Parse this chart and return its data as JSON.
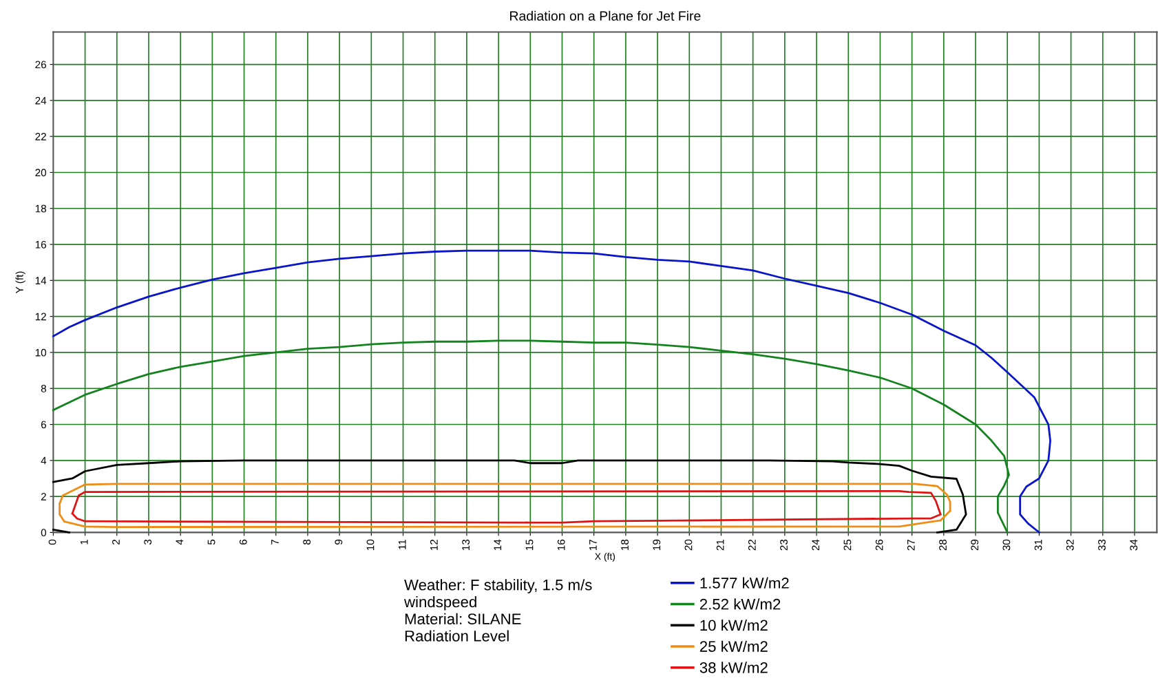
{
  "chart_data": {
    "type": "line",
    "title": "Radiation on a Plane for Jet Fire",
    "xlabel": "X (ft)",
    "ylabel": "Y (ft)",
    "xlim": [
      0,
      34.7
    ],
    "ylim": [
      0,
      27.8
    ],
    "xticks": [
      0,
      1,
      2,
      3,
      4,
      5,
      6,
      7,
      8,
      9,
      10,
      11,
      12,
      13,
      14,
      15,
      16,
      17,
      18,
      19,
      20,
      21,
      22,
      23,
      24,
      25,
      26,
      27,
      28,
      29,
      30,
      31,
      32,
      33,
      34
    ],
    "yticks": [
      0,
      2,
      4,
      6,
      8,
      10,
      12,
      14,
      16,
      18,
      20,
      22,
      24,
      26
    ],
    "grid": true,
    "legend": "bottom",
    "marker": "none",
    "line_style": "solid",
    "annotations": [
      "Weather: F stability, 1.5 m/s\nwindspeed\nMaterial: SILANE\nRadiation Level"
    ],
    "series": [
      {
        "name": "1.577 kW/m2",
        "color": "#0a14c8",
        "x": [
          0,
          0.5,
          1,
          2,
          3,
          4,
          5,
          6,
          7,
          8,
          9,
          10,
          11,
          12,
          13,
          14,
          15,
          16,
          17,
          18,
          19,
          20,
          21,
          22,
          23,
          24,
          25,
          26,
          27,
          28,
          29,
          29.5,
          30,
          30.85,
          31.29,
          31.35,
          31.29,
          31,
          30.6,
          30.4,
          30.4,
          30.65,
          31
        ],
        "values": [
          10.9,
          11.4,
          11.8,
          12.5,
          13.1,
          13.6,
          14.05,
          14.4,
          14.7,
          15.0,
          15.2,
          15.35,
          15.5,
          15.6,
          15.65,
          15.65,
          15.65,
          15.55,
          15.5,
          15.3,
          15.15,
          15.05,
          14.8,
          14.55,
          14.1,
          13.7,
          13.3,
          12.75,
          12.1,
          11.2,
          10.4,
          9.7,
          8.9,
          7.5,
          6.0,
          5.1,
          4.0,
          3.0,
          2.55,
          2.0,
          1.0,
          0.5,
          0
        ]
      },
      {
        "name": "2.52 kW/m2",
        "color": "#14821e",
        "x": [
          0,
          1,
          2,
          3,
          4,
          5,
          6,
          7,
          8,
          9,
          10,
          11,
          12,
          13,
          14,
          15,
          16,
          17,
          18,
          19,
          20,
          21,
          22,
          23,
          24,
          25,
          26,
          27,
          28,
          29,
          29.5,
          29.9,
          30.05,
          29.9,
          29.7,
          29.7,
          30
        ],
        "values": [
          6.8,
          7.65,
          8.25,
          8.8,
          9.2,
          9.5,
          9.8,
          10.0,
          10.2,
          10.3,
          10.45,
          10.55,
          10.6,
          10.6,
          10.65,
          10.65,
          10.6,
          10.55,
          10.55,
          10.43,
          10.3,
          10.1,
          9.9,
          9.65,
          9.35,
          9.0,
          8.6,
          8.0,
          7.1,
          6.0,
          5.1,
          4.25,
          3.2,
          2.6,
          2.0,
          1.1,
          0
        ]
      },
      {
        "name": "10 kW/m2",
        "color": "#000000",
        "x": [
          0.5,
          0,
          null,
          0,
          0.6,
          1,
          2,
          3,
          4,
          6,
          14.5,
          15,
          16,
          16.5,
          22.5,
          24.5,
          25,
          26,
          26.6,
          27,
          27.6,
          28.4,
          28.6,
          28.7,
          28.4,
          27.8
        ],
        "values": [
          0,
          0.15,
          null,
          2.8,
          3.0,
          3.4,
          3.75,
          3.85,
          3.95,
          4.0,
          4.0,
          3.85,
          3.85,
          4.0,
          4.0,
          3.95,
          3.88,
          3.8,
          3.7,
          3.43,
          3.1,
          2.98,
          2.1,
          1.0,
          0.15,
          0
        ]
      },
      {
        "name": "25 kW/m2",
        "color": "#f08c14",
        "x": [
          0.2,
          0.3,
          1,
          2,
          26.6,
          27.1,
          27.8,
          28.1,
          28.2,
          28.2,
          null,
          28.2,
          27.9,
          26.6,
          2,
          1,
          0.35,
          0.2,
          0.2
        ],
        "values": [
          1.6,
          2.05,
          2.66,
          2.7,
          2.7,
          2.7,
          2.57,
          2.1,
          1.7,
          1.2,
          null,
          1.2,
          0.67,
          0.33,
          0.3,
          0.33,
          0.6,
          1.0,
          1.6
        ]
      },
      {
        "name": "38 kW/m2",
        "color": "#dc1414",
        "x": [
          0.6,
          0.8,
          1,
          26.6,
          26.9,
          27.6,
          27.75,
          27.9,
          null,
          27.9,
          27.6,
          27.0,
          17,
          16,
          15,
          1,
          0.75,
          0.6
        ],
        "values": [
          1.05,
          2.05,
          2.25,
          2.3,
          2.25,
          2.2,
          1.75,
          1.0,
          null,
          1.0,
          0.78,
          0.78,
          0.62,
          0.55,
          0.55,
          0.62,
          0.77,
          1.05
        ]
      }
    ]
  }
}
